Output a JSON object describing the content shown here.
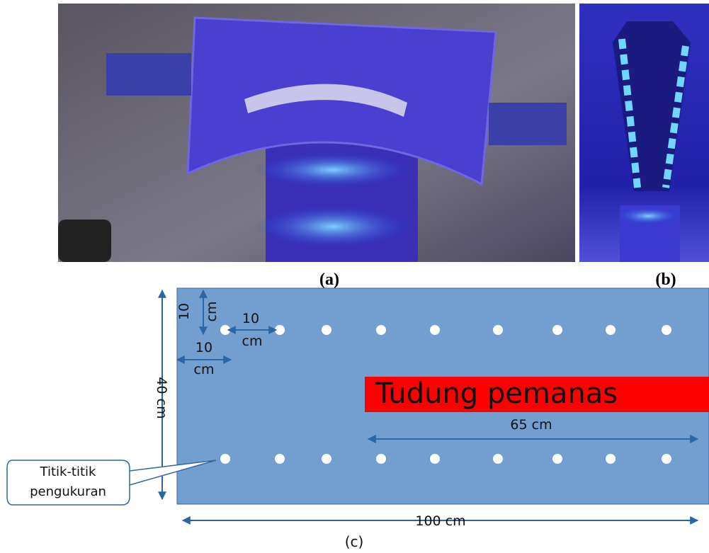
{
  "figure": {
    "panels": [
      {
        "label": "(a)"
      },
      {
        "label": "(b)"
      }
    ],
    "diagram": {
      "label": "(c)",
      "hood": "Tudung pemanas",
      "callout": [
        "Titik-titik",
        "pengukuran"
      ],
      "dimensions": {
        "height": "40 cm",
        "length": "100 cm",
        "hood_length": "65 cm",
        "spacing_vertical": [
          "10",
          "cm"
        ],
        "spacing_horizontal": [
          "10",
          "cm"
        ],
        "margin": [
          "10",
          "cm"
        ]
      }
    }
  }
}
